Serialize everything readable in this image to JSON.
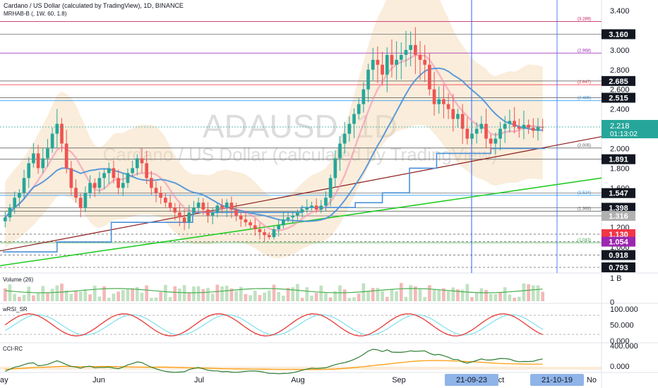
{
  "header": {
    "title": "Cardano / US Dollar (calculated by TradingView), 1D, BINANCE",
    "indicator": "MRHAB-B (, 1W, 60, 1.8)"
  },
  "watermark": {
    "symbol": "ADAUSD, 1D",
    "description": "Cardano / US Dollar (calculated by TradingView)"
  },
  "panes": {
    "volume": {
      "label": "Volume (26)"
    },
    "wrsi": {
      "label": "wRSI_SR"
    },
    "cci": {
      "label": "CCI-RC"
    }
  },
  "colors": {
    "up": "#26a69a",
    "down": "#ef5350",
    "blue": "#4a90d9",
    "green": "#22cc22",
    "darkred": "#8b1a1a",
    "band": "#f5d7b0",
    "accent": "#2962ff"
  },
  "chart_data": [
    {
      "type": "candlestick",
      "name": "ADAUSD",
      "y_scale": [
        0.75,
        3.45
      ],
      "x_axis_labels": [
        "ay",
        "Jun",
        "Jul",
        "Aug",
        "Sep",
        "ct",
        "No"
      ],
      "x_highlight_labels": [
        "21-09-23",
        "21-10-19"
      ],
      "y_axis_labels": [
        "3.400",
        "3.000",
        "2.800",
        "2.600",
        "2.400",
        "2.000",
        "1.800",
        "1.600",
        "1.200",
        "1.000",
        "0.800"
      ],
      "price_badges": [
        {
          "text": "3.160",
          "value": 3.16,
          "color": "#131722"
        },
        {
          "text": "2.685",
          "value": 2.685,
          "color": "#131722"
        },
        {
          "text": "2.515",
          "value": 2.515,
          "color": "#131722"
        },
        {
          "text": "1.891",
          "value": 1.891,
          "color": "#131722"
        },
        {
          "text": "1.547",
          "value": 1.547,
          "color": "#131722"
        },
        {
          "text": "1.398",
          "value": 1.398,
          "color": "#131722"
        },
        {
          "text": "1.316",
          "value": 1.316,
          "color": "#b0b0b0"
        },
        {
          "text": "1.130",
          "value": 1.13,
          "color": "#f23645"
        },
        {
          "text": "1.054",
          "value": 1.054,
          "color": "#9c27b0"
        },
        {
          "text": "0.918",
          "value": 0.918,
          "color": "#131722"
        },
        {
          "text": "0.793",
          "value": 0.793,
          "color": "#131722"
        }
      ],
      "current_price": {
        "text": "2.218",
        "countdown": "01:13:02",
        "value": 2.218
      },
      "fib_levels": [
        {
          "text": "(3.289)",
          "value": 3.289,
          "color": "#c2185b"
        },
        {
          "text": "(2.968)",
          "value": 2.968,
          "color": "#9c27b0"
        },
        {
          "text": "(2.647)",
          "value": 2.647,
          "color": "#f23645"
        },
        {
          "text": "(2.486)",
          "value": 2.486,
          "color": "#2196f3"
        },
        {
          "text": "(2.005)",
          "value": 2.005,
          "color": "#555555"
        },
        {
          "text": "(1.524)",
          "value": 1.524,
          "color": "#2196f3"
        },
        {
          "text": "(1.363)",
          "value": 1.363,
          "color": "#555555"
        },
        {
          "text": "(1.043)",
          "value": 1.043,
          "color": "#4caf50"
        }
      ],
      "closes": [
        1.3,
        1.4,
        1.5,
        1.55,
        1.7,
        1.85,
        1.95,
        1.8,
        1.9,
        2.0,
        2.15,
        2.25,
        2.05,
        1.8,
        1.6,
        1.5,
        1.4,
        1.55,
        1.65,
        1.6,
        1.7,
        1.75,
        1.8,
        1.7,
        1.6,
        1.65,
        1.75,
        1.8,
        1.9,
        1.85,
        1.7,
        1.6,
        1.55,
        1.5,
        1.45,
        1.4,
        1.35,
        1.3,
        1.25,
        1.35,
        1.4,
        1.45,
        1.38,
        1.32,
        1.35,
        1.42,
        1.4,
        1.45,
        1.38,
        1.32,
        1.28,
        1.25,
        1.22,
        1.18,
        1.15,
        1.12,
        1.1,
        1.18,
        1.22,
        1.28,
        1.3,
        1.32,
        1.35,
        1.38,
        1.4,
        1.42,
        1.38,
        1.42,
        1.5,
        1.7,
        1.9,
        2.05,
        2.15,
        2.25,
        2.35,
        2.45,
        2.6,
        2.8,
        2.9,
        2.85,
        2.75,
        2.95,
        2.85,
        2.9,
        2.95,
        3.0,
        3.05,
        2.95,
        2.9,
        2.85,
        2.6,
        2.45,
        2.5,
        2.45,
        2.4,
        2.3,
        2.35,
        2.2,
        2.1,
        2.15,
        2.2,
        2.25,
        2.1,
        2.05,
        2.1,
        2.2,
        2.25,
        2.28,
        2.22,
        2.2,
        2.24,
        2.21,
        2.18,
        2.22,
        2.218
      ]
    },
    {
      "type": "bar",
      "name": "Volume",
      "y_axis_labels": [
        "1 B",
        "0"
      ]
    },
    {
      "type": "line",
      "name": "wRSI_SR",
      "y_axis_labels": [
        "100.000",
        "50.000",
        "0.000"
      ]
    },
    {
      "type": "line",
      "name": "CCI-RC",
      "y_axis_labels": [
        "400.000",
        "0.000"
      ]
    }
  ]
}
